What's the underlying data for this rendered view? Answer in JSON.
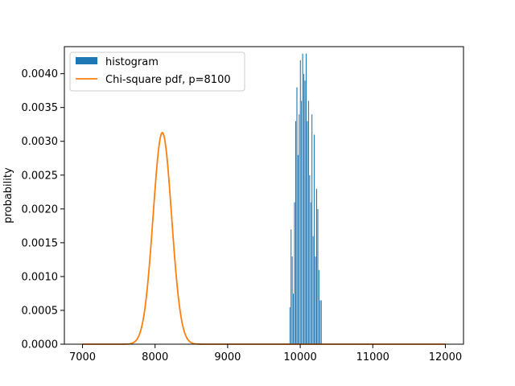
{
  "chart_data": {
    "type": "histogram+line",
    "ylabel": "probability",
    "xlabel": "",
    "title": "",
    "xlim": [
      6750,
      12250
    ],
    "ylim": [
      0,
      0.0044
    ],
    "x_ticks": [
      7000,
      8000,
      9000,
      10000,
      11000,
      12000
    ],
    "x_tick_labels": [
      "7000",
      "8000",
      "9000",
      "10000",
      "11000",
      "12000"
    ],
    "y_ticks": [
      0,
      0.0005,
      0.001,
      0.0015,
      0.002,
      0.0025,
      0.003,
      0.0035,
      0.004
    ],
    "y_tick_labels": [
      "0.0000",
      "0.0005",
      "0.0010",
      "0.0015",
      "0.0020",
      "0.0025",
      "0.0030",
      "0.0035",
      "0.0040"
    ],
    "grid": false,
    "legend_position": "top-left",
    "legend": [
      {
        "label": "histogram",
        "kind": "patch",
        "color": "#1f77b4"
      },
      {
        "label": "Chi-square pdf, p=8100",
        "kind": "line",
        "color": "#ff7f0e"
      }
    ],
    "histogram": {
      "name": "histogram",
      "color": "#1f77b4",
      "bin_edges": [
        9850,
        9866,
        9882,
        9898,
        9914,
        9930,
        9946,
        9962,
        9978,
        9994,
        10010,
        10026,
        10042,
        10058,
        10074,
        10090,
        10106,
        10122,
        10138,
        10154,
        10170,
        10186,
        10202,
        10218,
        10234,
        10250,
        10266,
        10282,
        10298
      ],
      "values": [
        0.00055,
        0.0017,
        0.0013,
        0.00075,
        0.0021,
        0.0033,
        0.0038,
        0.0028,
        0.0034,
        0.0042,
        0.0036,
        0.0043,
        0.004,
        0.0039,
        0.0043,
        0.0033,
        0.0036,
        0.0025,
        0.0021,
        0.0034,
        0.0016,
        0.0031,
        0.0013,
        0.0023,
        0.002,
        0.0011,
        0.00065,
        0.00065
      ]
    },
    "pdf": {
      "name": "Chi-square pdf, p=8100",
      "color": "#ff7f0e",
      "x_start": 7000,
      "x_end": 12000,
      "mean": 8100,
      "std": 127.28,
      "peak": 0.00313
    }
  }
}
